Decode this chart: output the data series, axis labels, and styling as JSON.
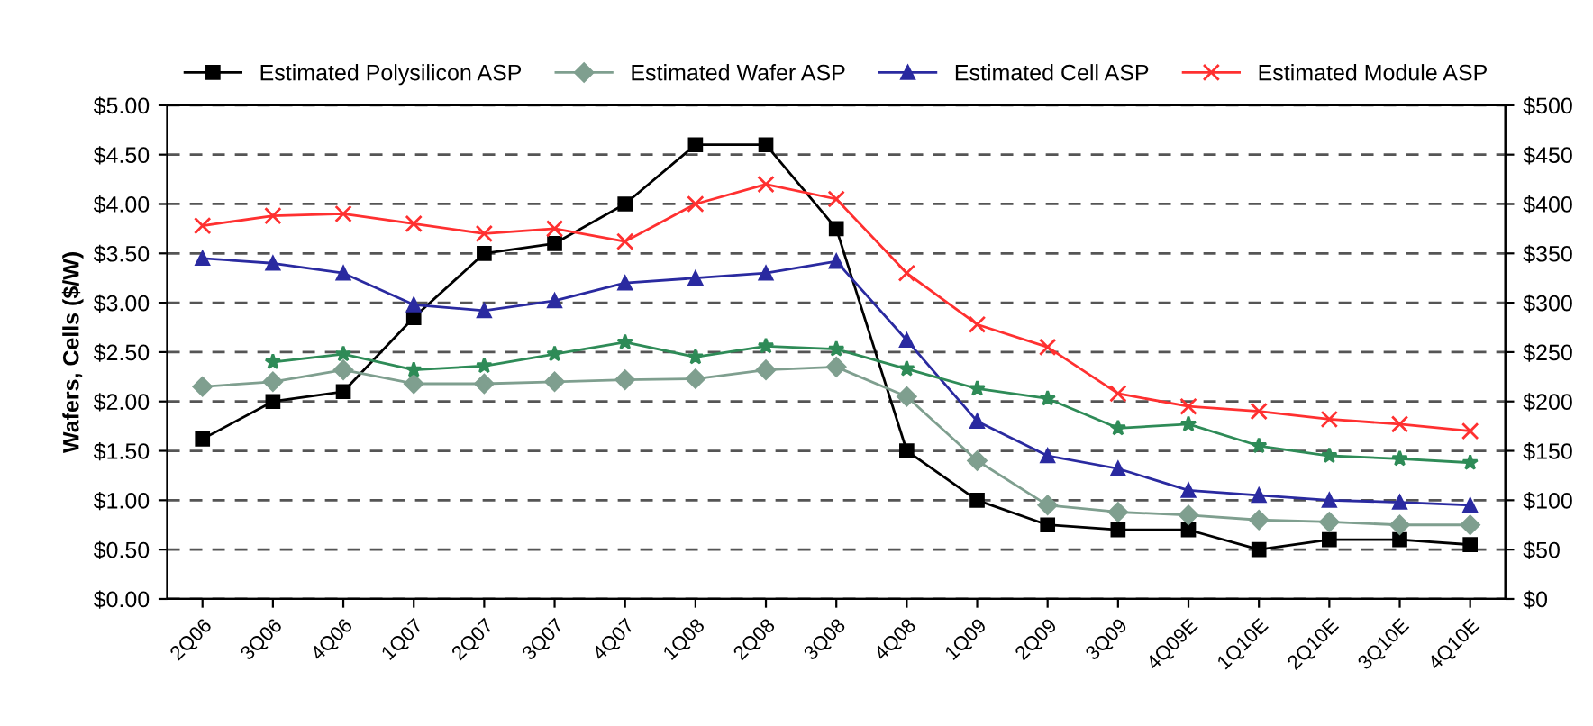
{
  "chart_data": {
    "type": "line",
    "ylabel": "Wafers, Cells ($/W)",
    "categories": [
      "2Q06",
      "3Q06",
      "4Q06",
      "1Q07",
      "2Q07",
      "3Q07",
      "4Q07",
      "1Q08",
      "2Q08",
      "3Q08",
      "4Q08",
      "1Q09",
      "2Q09",
      "3Q09",
      "4Q09E",
      "1Q10E",
      "2Q10E",
      "3Q10E",
      "4Q10E"
    ],
    "series": [
      {
        "name": "Estimated Polysilicon ASP",
        "color": "#000000",
        "marker": "square",
        "values": [
          1.62,
          2.0,
          2.1,
          2.85,
          3.5,
          3.6,
          4.0,
          4.6,
          4.6,
          3.75,
          1.5,
          1.0,
          0.75,
          0.7,
          0.7,
          0.5,
          0.6,
          0.6,
          0.55
        ]
      },
      {
        "name": "Estimated Wafer ASP",
        "color": "#7f9f8f",
        "marker": "diamond",
        "values": [
          2.15,
          2.2,
          2.32,
          2.18,
          2.18,
          2.2,
          2.22,
          2.23,
          2.32,
          2.35,
          2.05,
          1.4,
          0.95,
          0.88,
          0.85,
          0.8,
          0.78,
          0.75,
          0.75
        ]
      },
      {
        "name": "Estimated Cell ASP",
        "color": "#2a2aa0",
        "marker": "triangle",
        "values": [
          3.45,
          3.4,
          3.3,
          2.98,
          2.92,
          3.02,
          3.2,
          3.25,
          3.3,
          3.42,
          2.62,
          1.8,
          1.45,
          1.32,
          1.1,
          1.05,
          1.0,
          0.98,
          0.95
        ]
      },
      {
        "name": "Estimated Module ASP",
        "color": "#ff3030",
        "marker": "cross",
        "values": [
          3.78,
          3.88,
          3.9,
          3.8,
          3.7,
          3.75,
          3.62,
          4.0,
          4.2,
          4.05,
          3.3,
          2.78,
          2.55,
          2.08,
          1.95,
          1.9,
          1.82,
          1.77,
          1.7
        ]
      },
      {
        "color": "#2e8b57",
        "marker": "star",
        "values": [
          null,
          2.4,
          2.48,
          2.32,
          2.36,
          2.48,
          2.6,
          2.45,
          2.56,
          2.53,
          2.33,
          2.13,
          2.03,
          1.73,
          1.77,
          1.55,
          1.45,
          1.42,
          1.38
        ]
      }
    ],
    "ylim": [
      0,
      5
    ],
    "yticks": [
      {
        "value": 0,
        "label": "$0.00"
      },
      {
        "value": 0.5,
        "label": "$0.50"
      },
      {
        "value": 1,
        "label": "$1.00"
      },
      {
        "value": 1.5,
        "label": "$1.50"
      },
      {
        "value": 2,
        "label": "$2.00"
      },
      {
        "value": 2.5,
        "label": "$2.50"
      },
      {
        "value": 3,
        "label": "$3.00"
      },
      {
        "value": 3.5,
        "label": "$3.50"
      },
      {
        "value": 4,
        "label": "$4.00"
      },
      {
        "value": 4.5,
        "label": "$4.50"
      },
      {
        "value": 5,
        "label": "$5.00"
      }
    ],
    "y2lim": [
      0,
      500
    ],
    "y2ticks": [
      {
        "value": 0,
        "label": "$0"
      },
      {
        "value": 50,
        "label": "$50"
      },
      {
        "value": 100,
        "label": "$100"
      },
      {
        "value": 150,
        "label": "$150"
      },
      {
        "value": 200,
        "label": "$200"
      },
      {
        "value": 250,
        "label": "$250"
      },
      {
        "value": 300,
        "label": "$300"
      },
      {
        "value": 350,
        "label": "$350"
      },
      {
        "value": 400,
        "label": "$400"
      },
      {
        "value": 450,
        "label": "$450"
      },
      {
        "value": 500,
        "label": "$500"
      }
    ],
    "grid": "y",
    "legend": "top",
    "line_style": "solid"
  }
}
